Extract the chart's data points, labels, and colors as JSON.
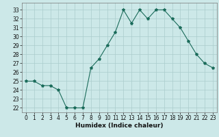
{
  "x": [
    0,
    1,
    2,
    3,
    4,
    5,
    6,
    7,
    8,
    9,
    10,
    11,
    12,
    13,
    14,
    15,
    16,
    17,
    18,
    19,
    20,
    21,
    22,
    23
  ],
  "y": [
    25,
    25,
    24.5,
    24.5,
    24,
    22,
    22,
    22,
    26.5,
    27.5,
    29,
    30.5,
    33,
    31.5,
    33,
    32,
    33,
    33,
    32,
    31,
    29.5,
    28,
    27,
    26.5
  ],
  "line_color": "#1a6b5a",
  "marker": "*",
  "marker_size": 3,
  "bg_color": "#cce8e8",
  "grid_color": "#aacccc",
  "xlabel": "Humidex (Indice chaleur)",
  "xlim": [
    -0.5,
    23.5
  ],
  "ylim": [
    21.5,
    33.8
  ],
  "yticks": [
    22,
    23,
    24,
    25,
    26,
    27,
    28,
    29,
    30,
    31,
    32,
    33
  ],
  "xticks": [
    0,
    1,
    2,
    3,
    4,
    5,
    6,
    7,
    8,
    9,
    10,
    11,
    12,
    13,
    14,
    15,
    16,
    17,
    18,
    19,
    20,
    21,
    22,
    23
  ],
  "tick_fontsize": 5.5,
  "xlabel_fontsize": 6.5,
  "label_color": "#111111"
}
